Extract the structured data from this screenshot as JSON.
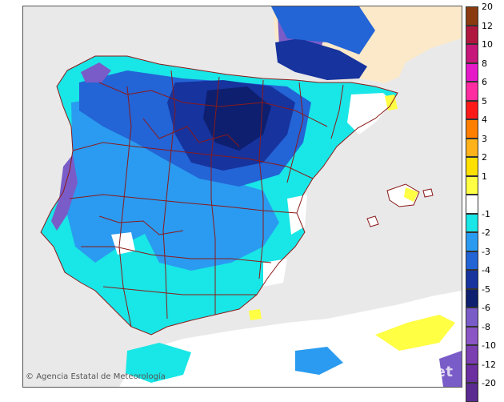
{
  "map": {
    "credit": "Agencia Estatal de Meteorología",
    "watermark": "aemet",
    "colors": {
      "sea": "#e9e9e9",
      "land_outside": "#fbe9c9",
      "border": "#8b1a1a"
    }
  },
  "legend": {
    "positive": [
      {
        "label": "20",
        "color": "#8b3a0f"
      },
      {
        "label": "12",
        "color": "#b0173f"
      },
      {
        "label": "10",
        "color": "#c7177a"
      },
      {
        "label": "8",
        "color": "#e619c8"
      },
      {
        "label": "6",
        "color": "#ff2ba0"
      },
      {
        "label": "5",
        "color": "#ff1a1a"
      },
      {
        "label": "4",
        "color": "#ff7f00"
      },
      {
        "label": "3",
        "color": "#ffb21a"
      },
      {
        "label": "2",
        "color": "#ffe000"
      },
      {
        "label": "1",
        "color": "#ffff44"
      }
    ],
    "negative": [
      {
        "label": "-1",
        "color": "#19e6e6"
      },
      {
        "label": "-2",
        "color": "#2a9bf0"
      },
      {
        "label": "-3",
        "color": "#2364d6"
      },
      {
        "label": "-4",
        "color": "#16339e"
      },
      {
        "label": "-5",
        "color": "#0d1f6e"
      },
      {
        "label": "-6",
        "color": "#7a5cc8"
      },
      {
        "label": "-8",
        "color": "#8a55c4"
      },
      {
        "label": "-10",
        "color": "#7b3fb2"
      },
      {
        "label": "-12",
        "color": "#6b2fa0"
      },
      {
        "label": "-20",
        "color": "#5a2a90"
      }
    ]
  }
}
